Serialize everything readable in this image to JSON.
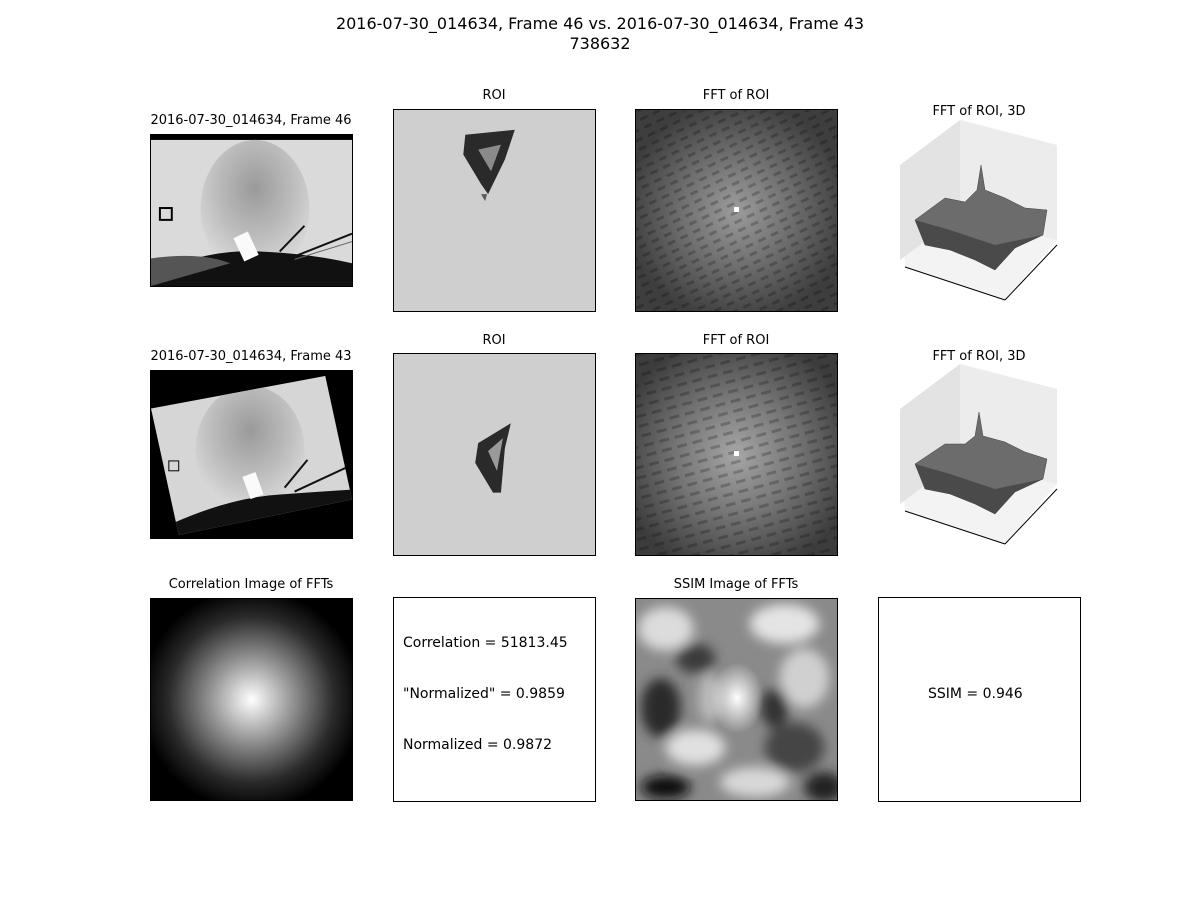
{
  "figure": {
    "title_line1": "2016-07-30_014634, Frame 46 vs. 2016-07-30_014634, Frame 43",
    "title_line2": "738632"
  },
  "row1": {
    "image_title": "2016-07-30_014634, Frame 46",
    "roi_title": "ROI",
    "fft_title": "FFT of ROI",
    "fft3d_title": "FFT of ROI, 3D"
  },
  "row2": {
    "image_title": "2016-07-30_014634, Frame 43",
    "roi_title": "ROI",
    "fft_title": "FFT of ROI",
    "fft3d_title": "FFT of ROI, 3D"
  },
  "row3": {
    "correlation_title": "Correlation Image of FFTs",
    "correlation_line": "Correlation = 51813.45",
    "quoted_normalized_line": "\"Normalized\" = 0.9859",
    "normalized_line": "Normalized = 0.9872",
    "ssim_title": "SSIM Image of FFTs",
    "ssim_line": "SSIM = 0.946"
  },
  "colors": {
    "background": "#ffffff",
    "panel_border": "#000000",
    "roi_gray": "#cfcfcf",
    "frame_gray": "#d4d4d4"
  }
}
